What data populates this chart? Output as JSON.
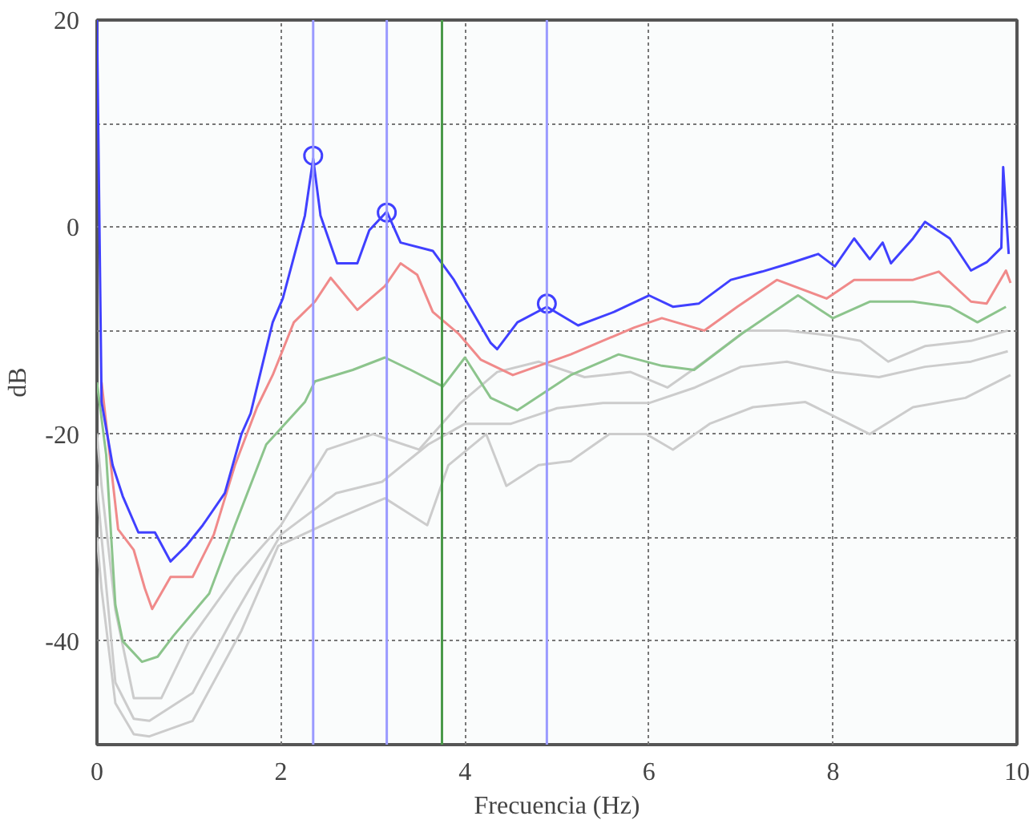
{
  "chart_data": {
    "type": "line",
    "xlabel": "Frecuencia (Hz)",
    "ylabel": "dB",
    "xlim": [
      0,
      10
    ],
    "ylim": [
      -50,
      20
    ],
    "xticks": [
      0,
      2,
      4,
      6,
      8,
      10
    ],
    "yticks": [
      20,
      {
        "value": 10,
        "label": null
      },
      0,
      {
        "value": -10,
        "label": null
      },
      -20,
      {
        "value": -30,
        "label": null
      },
      -40
    ],
    "grid": true,
    "line_style": "solid",
    "marker": "none",
    "ref_lines": [
      {
        "axis": "x",
        "value": 2.35,
        "color": "#9a9aff"
      },
      {
        "axis": "x",
        "value": 3.15,
        "color": "#9a9aff"
      },
      {
        "axis": "x",
        "value": 3.75,
        "color": "#4a9a4a"
      },
      {
        "axis": "x",
        "value": 4.89,
        "color": "#9a9aff"
      }
    ],
    "series": [
      {
        "color": "#cccccc",
        "x": [
          0,
          0.05,
          0.2,
          0.4,
          0.7,
          1.0,
          1.5,
          2.0,
          2.5,
          3.0,
          3.5,
          3.95,
          4.35,
          4.8,
          5.3,
          5.8,
          6.2,
          6.6,
          7.05,
          7.5,
          8.0,
          8.3,
          8.6,
          9.0,
          9.5,
          9.9
        ],
        "values": [
          -20,
          -25,
          -37,
          -45.5,
          -45.5,
          -40,
          -33.8,
          -28.8,
          -21.5,
          -20,
          -21.5,
          -17,
          -14,
          -13,
          -14.5,
          -14,
          -15.5,
          -13,
          -10,
          -10,
          -10.5,
          -11,
          -13,
          -11.5,
          -11,
          -10
        ]
      },
      {
        "color": "#cccccc",
        "x": [
          0,
          0.05,
          0.2,
          0.4,
          0.57,
          1.04,
          1.5,
          2.0,
          2.6,
          3.1,
          3.6,
          4.0,
          4.5,
          5.0,
          5.5,
          6.0,
          6.5,
          7.0,
          7.5,
          8.0,
          8.5,
          9.0,
          9.5,
          9.9
        ],
        "values": [
          -25,
          -30,
          -44,
          -47.5,
          -47.7,
          -45,
          -37.4,
          -29.7,
          -25.7,
          -24.6,
          -21,
          -19,
          -19,
          -17.5,
          -17,
          -17,
          -15.5,
          -13.5,
          -13,
          -14,
          -14.5,
          -13.5,
          -13,
          -12
        ]
      },
      {
        "color": "#cccccc",
        "x": [
          0,
          0.05,
          0.2,
          0.4,
          0.57,
          1.04,
          1.57,
          1.97,
          2.6,
          3.13,
          3.59,
          3.82,
          4.23,
          4.45,
          4.8,
          5.15,
          5.57,
          5.97,
          6.26,
          6.66,
          7.13,
          7.7,
          8.4,
          8.87,
          9.44,
          9.93
        ],
        "values": [
          -30,
          -35,
          -46,
          -49,
          -49.2,
          -47.7,
          -39,
          -30.8,
          -28.2,
          -26.2,
          -28.8,
          -23,
          -20,
          -25,
          -23,
          -22.6,
          -20,
          -20,
          -21.5,
          -19,
          -17.4,
          -16.9,
          -20,
          -17.4,
          -16.5,
          -14.3
        ]
      },
      {
        "color": "#8cc48c",
        "x": [
          0,
          0.1,
          0.2,
          0.28,
          0.49,
          0.66,
          0.83,
          1.22,
          1.5,
          1.84,
          2.26,
          2.37,
          2.78,
          3.13,
          3.41,
          3.76,
          4.0,
          4.28,
          4.57,
          5.15,
          5.67,
          6.14,
          6.49,
          7.01,
          7.62,
          8.0,
          8.4,
          8.87,
          9.27,
          9.57,
          9.88
        ],
        "values": [
          -15,
          -22,
          -36.5,
          -40,
          -42,
          -41.5,
          -39.5,
          -35.4,
          -28.8,
          -21,
          -16.9,
          -14.9,
          -13.8,
          -12.6,
          -13.8,
          -15.4,
          -12.6,
          -16.5,
          -17.7,
          -14.3,
          -12.3,
          -13.4,
          -13.8,
          -10.3,
          -6.6,
          -8.8,
          -7.2,
          -7.2,
          -7.7,
          -9.2,
          -7.7
        ]
      },
      {
        "color": "#f08a8a",
        "x": [
          0.05,
          0.23,
          0.4,
          0.52,
          0.6,
          0.8,
          1.04,
          1.27,
          1.5,
          1.74,
          1.91,
          2.14,
          2.37,
          2.54,
          2.83,
          3.13,
          3.3,
          3.48,
          3.65,
          3.93,
          4.17,
          4.52,
          5.15,
          5.84,
          6.14,
          6.6,
          6.96,
          7.39,
          7.93,
          8.23,
          8.87,
          9.15,
          9.5,
          9.67,
          9.88,
          9.93
        ],
        "values": [
          -15,
          -29.2,
          -31.2,
          -34.9,
          -36.9,
          -33.8,
          -33.8,
          -29.7,
          -23,
          -17.4,
          -14.3,
          -9.2,
          -7.2,
          -4.9,
          -8,
          -5.7,
          -3.5,
          -4.6,
          -8.2,
          -10.3,
          -12.8,
          -14.3,
          -12.3,
          -9.7,
          -8.8,
          -10,
          -7.7,
          -5.1,
          -6.9,
          -5.1,
          -5.1,
          -4.3,
          -7.2,
          -7.4,
          -4.2,
          -5.4
        ]
      },
      {
        "color": "#4040ff",
        "x": [
          0,
          0.05,
          0.17,
          0.28,
          0.45,
          0.63,
          0.8,
          0.97,
          1.15,
          1.39,
          1.57,
          1.67,
          1.91,
          2.02,
          2.26,
          2.35,
          2.43,
          2.61,
          2.83,
          2.96,
          3.15,
          3.3,
          3.65,
          3.88,
          4.05,
          4.28,
          4.35,
          4.57,
          4.89,
          5.23,
          5.62,
          6.0,
          6.26,
          6.54,
          6.89,
          7.23,
          7.53,
          7.84,
          8.02,
          8.23,
          8.4,
          8.54,
          8.63,
          8.87,
          9.0,
          9.27,
          9.5,
          9.67,
          9.83,
          9.85,
          9.91
        ],
        "values": [
          20,
          -16.9,
          -23,
          -26,
          -29.5,
          -29.5,
          -32.3,
          -30.8,
          -28.8,
          -25.7,
          -20,
          -18,
          -9.2,
          -6.9,
          1.1,
          6.6,
          1.1,
          -3.5,
          -3.5,
          -0.3,
          1.5,
          -1.5,
          -2.3,
          -5.1,
          -7.7,
          -11.2,
          -11.8,
          -9.2,
          -7.7,
          -9.5,
          -8.2,
          -6.6,
          -7.7,
          -7.4,
          -5.1,
          -4.3,
          -3.5,
          -2.6,
          -3.8,
          -1.1,
          -3.1,
          -1.5,
          -3.5,
          -1.1,
          0.5,
          -1.1,
          -4.2,
          -3.4,
          -2,
          5.8,
          -2.6
        ]
      },
      {
        "type": "scatter",
        "marker": "circle",
        "color": "#4040ff",
        "x": [
          2.35,
          3.15,
          4.89
        ],
        "values": [
          6.9,
          1.4,
          -7.4
        ]
      }
    ]
  }
}
